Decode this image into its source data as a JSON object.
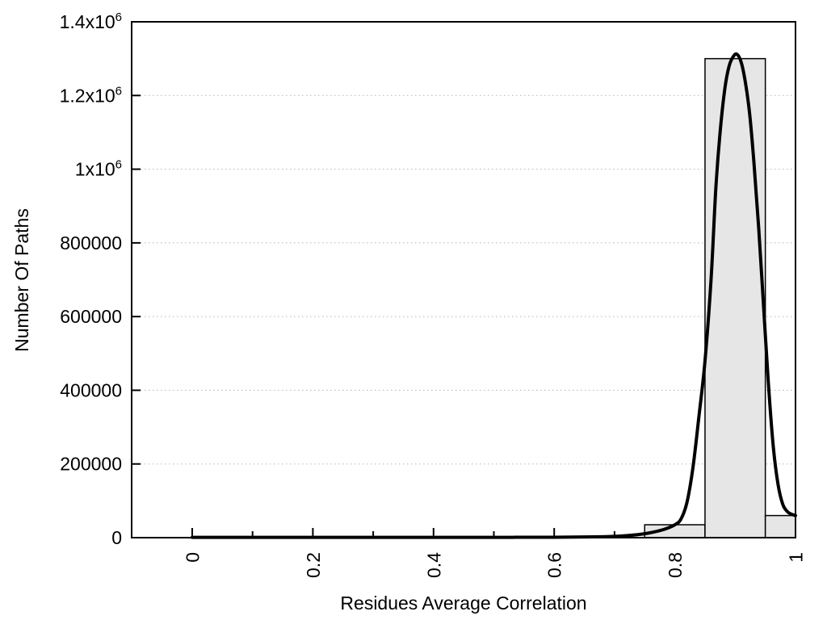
{
  "chart_data": {
    "type": "bar",
    "subtype": "histogram-with-fit-curve",
    "title": "",
    "xlabel": "Residues Average Correlation",
    "ylabel": "Number Of Paths",
    "xlim": [
      -0.1,
      1.0
    ],
    "ylim": [
      0,
      1400000
    ],
    "grid": "horizontal dotted lines at y major ticks",
    "legend": "none",
    "x_ticks": {
      "major_values": [
        0,
        0.2,
        0.4,
        0.6,
        0.8,
        1.0
      ],
      "major_labels": [
        "0",
        "0.2",
        "0.4",
        "0.6",
        "0.8",
        "1"
      ],
      "minor_step": 0.1,
      "label_rotation_deg": -90
    },
    "y_ticks": {
      "values": [
        0,
        200000,
        400000,
        600000,
        800000,
        1000000,
        1200000,
        1400000
      ],
      "labels": [
        "0",
        "200000",
        "400000",
        "600000",
        "800000",
        "1x10^6",
        "1.2x10^6",
        "1.4x10^6"
      ]
    },
    "bars": {
      "fill": "#e6e6e6",
      "border": "#000000",
      "bins": [
        {
          "x_start": 0.75,
          "x_end": 0.85,
          "count": 35000
        },
        {
          "x_start": 0.85,
          "x_end": 0.95,
          "count": 1300000
        },
        {
          "x_start": 0.95,
          "x_end": 1.0,
          "count": 60000
        }
      ]
    },
    "fit_curve": {
      "color": "#000000",
      "stroke_width": 4,
      "peak_x": 0.903,
      "peak_y": 1312000,
      "points": [
        [
          0.0,
          800
        ],
        [
          0.1,
          800
        ],
        [
          0.2,
          800
        ],
        [
          0.3,
          800
        ],
        [
          0.4,
          800
        ],
        [
          0.5,
          900
        ],
        [
          0.55,
          1000
        ],
        [
          0.6,
          1200
        ],
        [
          0.65,
          1800
        ],
        [
          0.68,
          2500
        ],
        [
          0.7,
          3500
        ],
        [
          0.72,
          5500
        ],
        [
          0.74,
          8500
        ],
        [
          0.755,
          12000
        ],
        [
          0.77,
          17000
        ],
        [
          0.785,
          24000
        ],
        [
          0.8,
          35000
        ],
        [
          0.81,
          50000
        ],
        [
          0.82,
          95000
        ],
        [
          0.83,
          190000
        ],
        [
          0.84,
          330000
        ],
        [
          0.85,
          480000
        ],
        [
          0.86,
          700000
        ],
        [
          0.868,
          950000
        ],
        [
          0.875,
          1100000
        ],
        [
          0.883,
          1220000
        ],
        [
          0.89,
          1280000
        ],
        [
          0.897,
          1306000
        ],
        [
          0.903,
          1312000
        ],
        [
          0.91,
          1290000
        ],
        [
          0.917,
          1235000
        ],
        [
          0.924,
          1150000
        ],
        [
          0.931,
          1020000
        ],
        [
          0.939,
          840000
        ],
        [
          0.947,
          630000
        ],
        [
          0.955,
          420000
        ],
        [
          0.963,
          250000
        ],
        [
          0.971,
          145000
        ],
        [
          0.979,
          90000
        ],
        [
          0.987,
          70000
        ],
        [
          0.993,
          64000
        ],
        [
          1.0,
          60000
        ]
      ]
    }
  },
  "colors": {
    "background": "#ffffff",
    "axis": "#000000",
    "grid": "#b5b5b5",
    "text": "#000000",
    "bar_fill": "#e6e6e6"
  }
}
